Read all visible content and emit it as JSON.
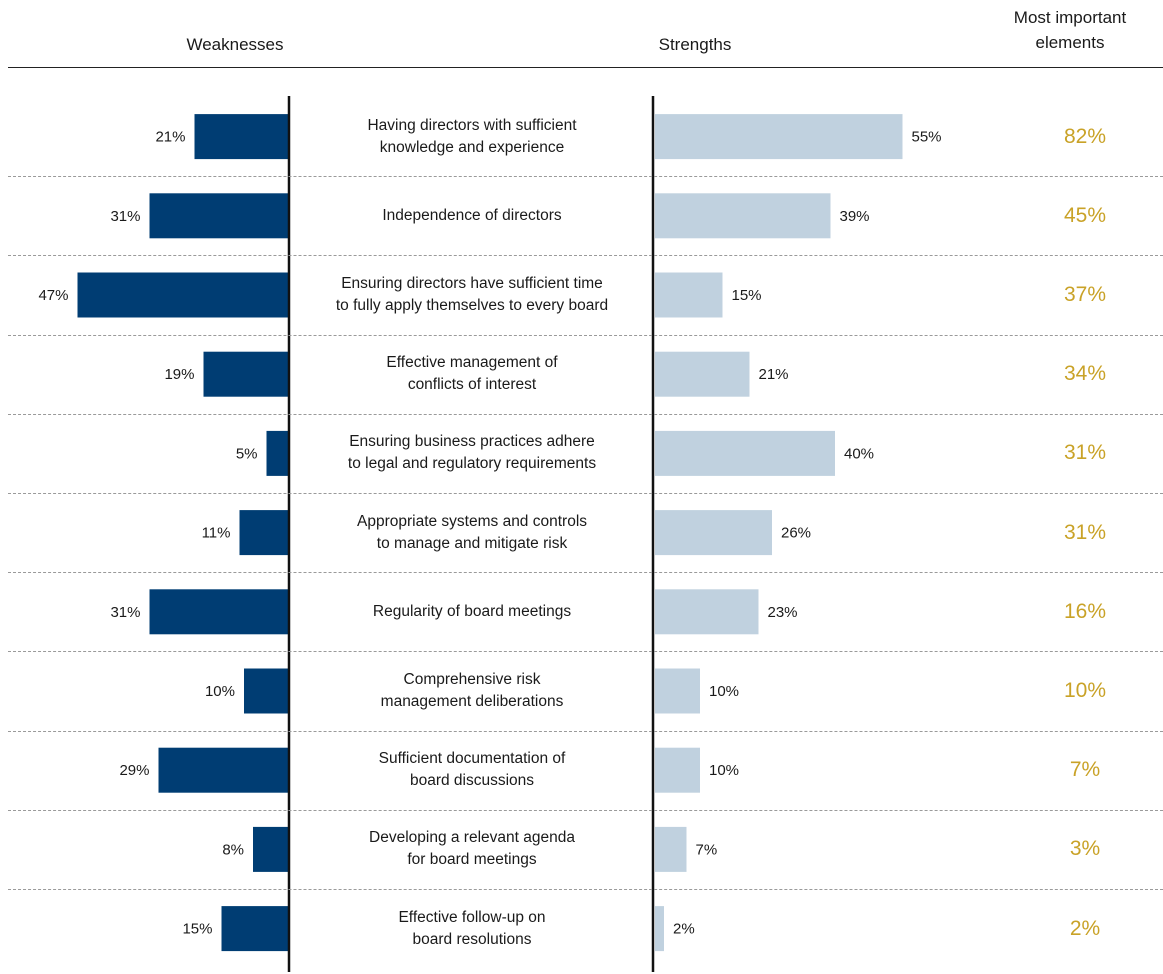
{
  "headers": {
    "weaknesses": "Weaknesses",
    "strengths": "Strengths",
    "important_line1": "Most important",
    "important_line2": "elements"
  },
  "colors": {
    "weakness_bar": "#003d73",
    "strength_bar": "#c0d1df",
    "important_text": "#c9a227",
    "separator": "#9a9a9a"
  },
  "chart_data": {
    "type": "bar",
    "categories": [
      [
        "Having directors with sufficient",
        "knowledge and experience"
      ],
      [
        "Independence of directors"
      ],
      [
        "Ensuring directors have sufficient time",
        "to fully apply themselves to every board"
      ],
      [
        "Effective management of",
        "conflicts of interest"
      ],
      [
        "Ensuring business practices adhere",
        "to legal and regulatory requirements"
      ],
      [
        "Appropriate systems and controls",
        "to manage and mitigate risk"
      ],
      [
        "Regularity of board meetings"
      ],
      [
        "Comprehensive risk",
        "management deliberations"
      ],
      [
        "Sufficient documentation of",
        "board discussions"
      ],
      [
        "Developing a relevant agenda",
        "for board meetings"
      ],
      [
        "Effective follow-up on",
        "board resolutions"
      ]
    ],
    "series": [
      {
        "name": "Weaknesses",
        "values": [
          21,
          31,
          47,
          19,
          5,
          11,
          31,
          10,
          29,
          8,
          15
        ]
      },
      {
        "name": "Strengths",
        "values": [
          55,
          39,
          15,
          21,
          40,
          26,
          23,
          10,
          10,
          7,
          2
        ]
      },
      {
        "name": "Most important elements",
        "values": [
          82,
          45,
          37,
          34,
          31,
          31,
          16,
          10,
          7,
          3,
          2
        ]
      }
    ],
    "value_suffix": "%"
  }
}
